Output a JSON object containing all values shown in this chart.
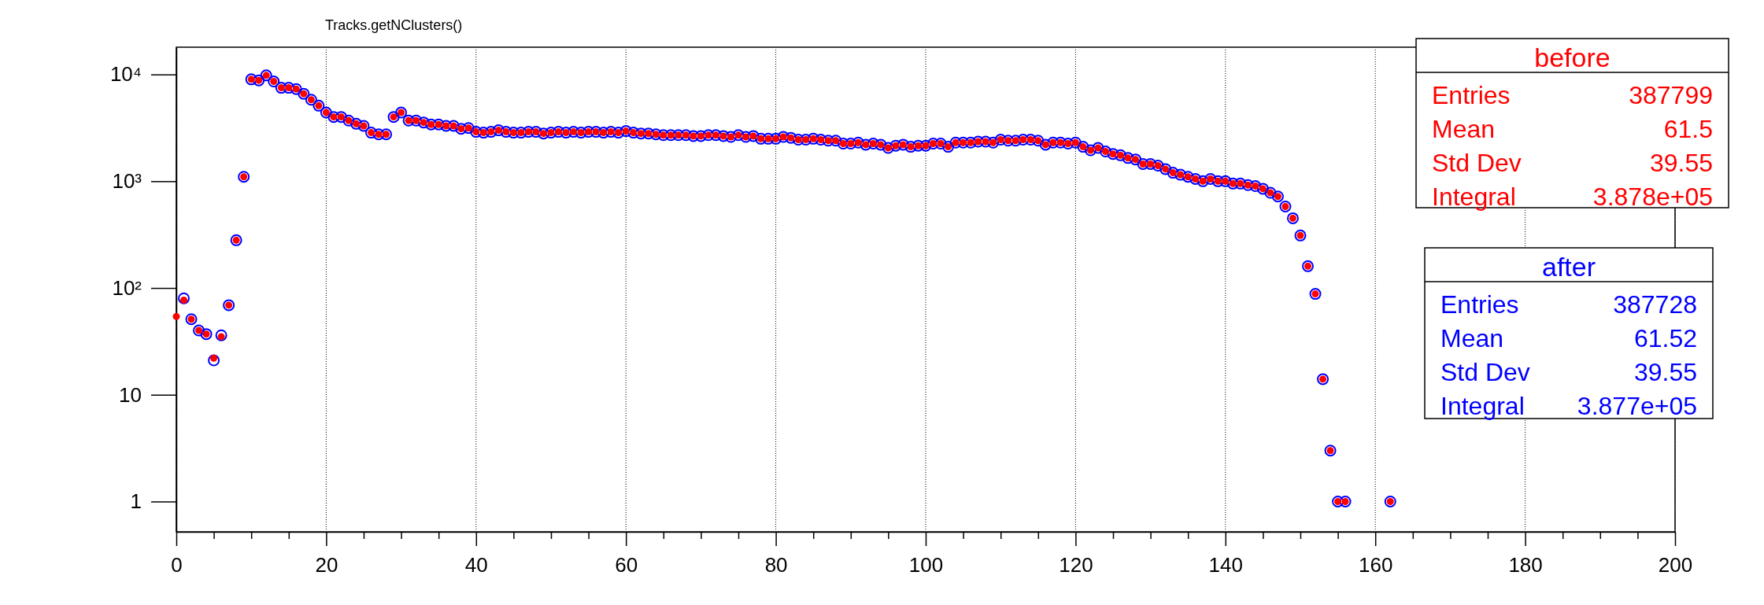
{
  "chart_data": {
    "type": "scatter",
    "title": "Tracks.getNClusters()",
    "x": [
      0,
      1,
      2,
      3,
      4,
      5,
      6,
      7,
      8,
      9,
      10,
      11,
      12,
      13,
      14,
      15,
      16,
      17,
      18,
      19,
      20,
      21,
      22,
      23,
      24,
      25,
      26,
      27,
      28,
      29,
      30,
      31,
      32,
      33,
      34,
      35,
      36,
      37,
      38,
      39,
      40,
      41,
      42,
      43,
      44,
      45,
      46,
      47,
      48,
      49,
      50,
      51,
      52,
      53,
      54,
      55,
      56,
      57,
      58,
      59,
      60,
      61,
      62,
      63,
      64,
      65,
      66,
      67,
      68,
      69,
      70,
      71,
      72,
      73,
      74,
      75,
      76,
      77,
      78,
      79,
      80,
      81,
      82,
      83,
      84,
      85,
      86,
      87,
      88,
      89,
      90,
      91,
      92,
      93,
      94,
      95,
      96,
      97,
      98,
      99,
      100,
      101,
      102,
      103,
      104,
      105,
      106,
      107,
      108,
      109,
      110,
      111,
      112,
      113,
      114,
      115,
      116,
      117,
      118,
      119,
      120,
      121,
      122,
      123,
      124,
      125,
      126,
      127,
      128,
      129,
      130,
      131,
      132,
      133,
      134,
      135,
      136,
      137,
      138,
      139,
      140,
      141,
      142,
      143,
      144,
      145,
      146,
      147,
      148,
      149,
      150,
      151,
      152,
      153,
      154,
      155,
      156,
      162
    ],
    "series": [
      {
        "name": "before",
        "color": "#ff0000",
        "values": [
          54,
          77,
          51,
          40,
          37,
          22,
          35,
          69,
          280,
          1100,
          9000,
          8800,
          9800,
          8600,
          7500,
          7500,
          7300,
          6600,
          5800,
          5100,
          4400,
          4000,
          4000,
          3700,
          3450,
          3300,
          2850,
          2750,
          2750,
          4000,
          4400,
          3700,
          3700,
          3550,
          3400,
          3400,
          3300,
          3300,
          3100,
          3150,
          2900,
          2850,
          2900,
          3000,
          2900,
          2850,
          2850,
          2900,
          2900,
          2800,
          2850,
          2900,
          2850,
          2900,
          2850,
          2900,
          2900,
          2850,
          2900,
          2850,
          2950,
          2850,
          2800,
          2800,
          2750,
          2700,
          2700,
          2700,
          2700,
          2650,
          2650,
          2700,
          2700,
          2650,
          2600,
          2700,
          2600,
          2650,
          2500,
          2500,
          2500,
          2600,
          2550,
          2450,
          2450,
          2500,
          2450,
          2400,
          2400,
          2250,
          2250,
          2300,
          2200,
          2250,
          2200,
          2050,
          2150,
          2200,
          2100,
          2150,
          2150,
          2250,
          2250,
          2100,
          2300,
          2300,
          2300,
          2350,
          2350,
          2300,
          2450,
          2400,
          2400,
          2450,
          2450,
          2400,
          2200,
          2300,
          2300,
          2250,
          2300,
          2100,
          1950,
          2050,
          1900,
          1800,
          1750,
          1650,
          1600,
          1450,
          1450,
          1400,
          1300,
          1200,
          1150,
          1100,
          1050,
          1000,
          1050,
          1000,
          1000,
          950,
          950,
          920,
          900,
          850,
          780,
          720,
          580,
          450,
          310,
          160,
          88,
          14,
          3,
          1,
          1,
          1
        ]
      },
      {
        "name": "after",
        "color": "#0000ff",
        "values": [
          null,
          80,
          51,
          40,
          37,
          21,
          36,
          69,
          280,
          1100,
          9000,
          8800,
          9800,
          8600,
          7500,
          7500,
          7300,
          6600,
          5800,
          5100,
          4400,
          4000,
          4000,
          3700,
          3450,
          3300,
          2850,
          2750,
          2750,
          4000,
          4400,
          3700,
          3700,
          3550,
          3400,
          3400,
          3300,
          3300,
          3100,
          3150,
          2900,
          2850,
          2900,
          3000,
          2900,
          2850,
          2850,
          2900,
          2900,
          2800,
          2850,
          2900,
          2850,
          2900,
          2850,
          2900,
          2900,
          2850,
          2900,
          2850,
          2950,
          2850,
          2800,
          2800,
          2750,
          2700,
          2700,
          2700,
          2700,
          2650,
          2650,
          2700,
          2700,
          2650,
          2600,
          2700,
          2600,
          2650,
          2500,
          2500,
          2500,
          2600,
          2550,
          2450,
          2450,
          2500,
          2450,
          2400,
          2400,
          2250,
          2250,
          2300,
          2200,
          2250,
          2200,
          2050,
          2150,
          2200,
          2100,
          2150,
          2150,
          2250,
          2250,
          2100,
          2300,
          2300,
          2300,
          2350,
          2350,
          2300,
          2450,
          2400,
          2400,
          2450,
          2450,
          2400,
          2200,
          2300,
          2300,
          2250,
          2300,
          2100,
          1950,
          2050,
          1900,
          1800,
          1750,
          1650,
          1600,
          1450,
          1450,
          1400,
          1300,
          1200,
          1150,
          1100,
          1050,
          1000,
          1050,
          1000,
          1000,
          950,
          950,
          920,
          900,
          850,
          780,
          720,
          580,
          450,
          310,
          160,
          88,
          14,
          3,
          1,
          1,
          1
        ]
      }
    ],
    "annotations": [
      "Entries",
      "387799",
      "Mean",
      "61.5",
      "Std Dev",
      "39.55",
      "Integral",
      "3.878e+05",
      "Entries",
      "387728",
      "Mean",
      "61.52",
      "Std Dev",
      "39.55",
      "Integral",
      "3.877e+05"
    ],
    "xlim": [
      0,
      200
    ],
    "xticks": [
      0,
      {
        "value": 5,
        "label": null
      },
      {
        "value": 10,
        "label": null
      },
      {
        "value": 15,
        "label": null
      },
      20,
      {
        "value": 25,
        "label": null
      },
      {
        "value": 30,
        "label": null
      },
      {
        "value": 35,
        "label": null
      },
      40,
      {
        "value": 45,
        "label": null
      },
      {
        "value": 50,
        "label": null
      },
      {
        "value": 55,
        "label": null
      },
      60,
      {
        "value": 65,
        "label": null
      },
      {
        "value": 70,
        "label": null
      },
      {
        "value": 75,
        "label": null
      },
      80,
      {
        "value": 85,
        "label": null
      },
      {
        "value": 90,
        "label": null
      },
      {
        "value": 95,
        "label": null
      },
      100,
      {
        "value": 105,
        "label": null
      },
      {
        "value": 110,
        "label": null
      },
      {
        "value": 115,
        "label": null
      },
      120,
      {
        "value": 125,
        "label": null
      },
      {
        "value": 130,
        "label": null
      },
      {
        "value": 135,
        "label": null
      },
      140,
      {
        "value": 145,
        "label": null
      },
      {
        "value": 150,
        "label": null
      },
      {
        "value": 155,
        "label": null
      },
      160,
      {
        "value": 165,
        "label": null
      },
      {
        "value": 170,
        "label": null
      },
      {
        "value": 175,
        "label": null
      },
      180,
      {
        "value": 185,
        "label": null
      },
      {
        "value": 190,
        "label": null
      },
      {
        "value": 195,
        "label": null
      },
      200
    ],
    "ylim": [
      0.52,
      18000
    ],
    "yticks": [
      1,
      10,
      {
        "value": 100,
        "label": "10²"
      },
      {
        "value": 1000,
        "label": "10³"
      },
      {
        "value": 10000,
        "label": "10⁴"
      }
    ],
    "log": true,
    "grid": "x",
    "marker": "circle"
  }
}
